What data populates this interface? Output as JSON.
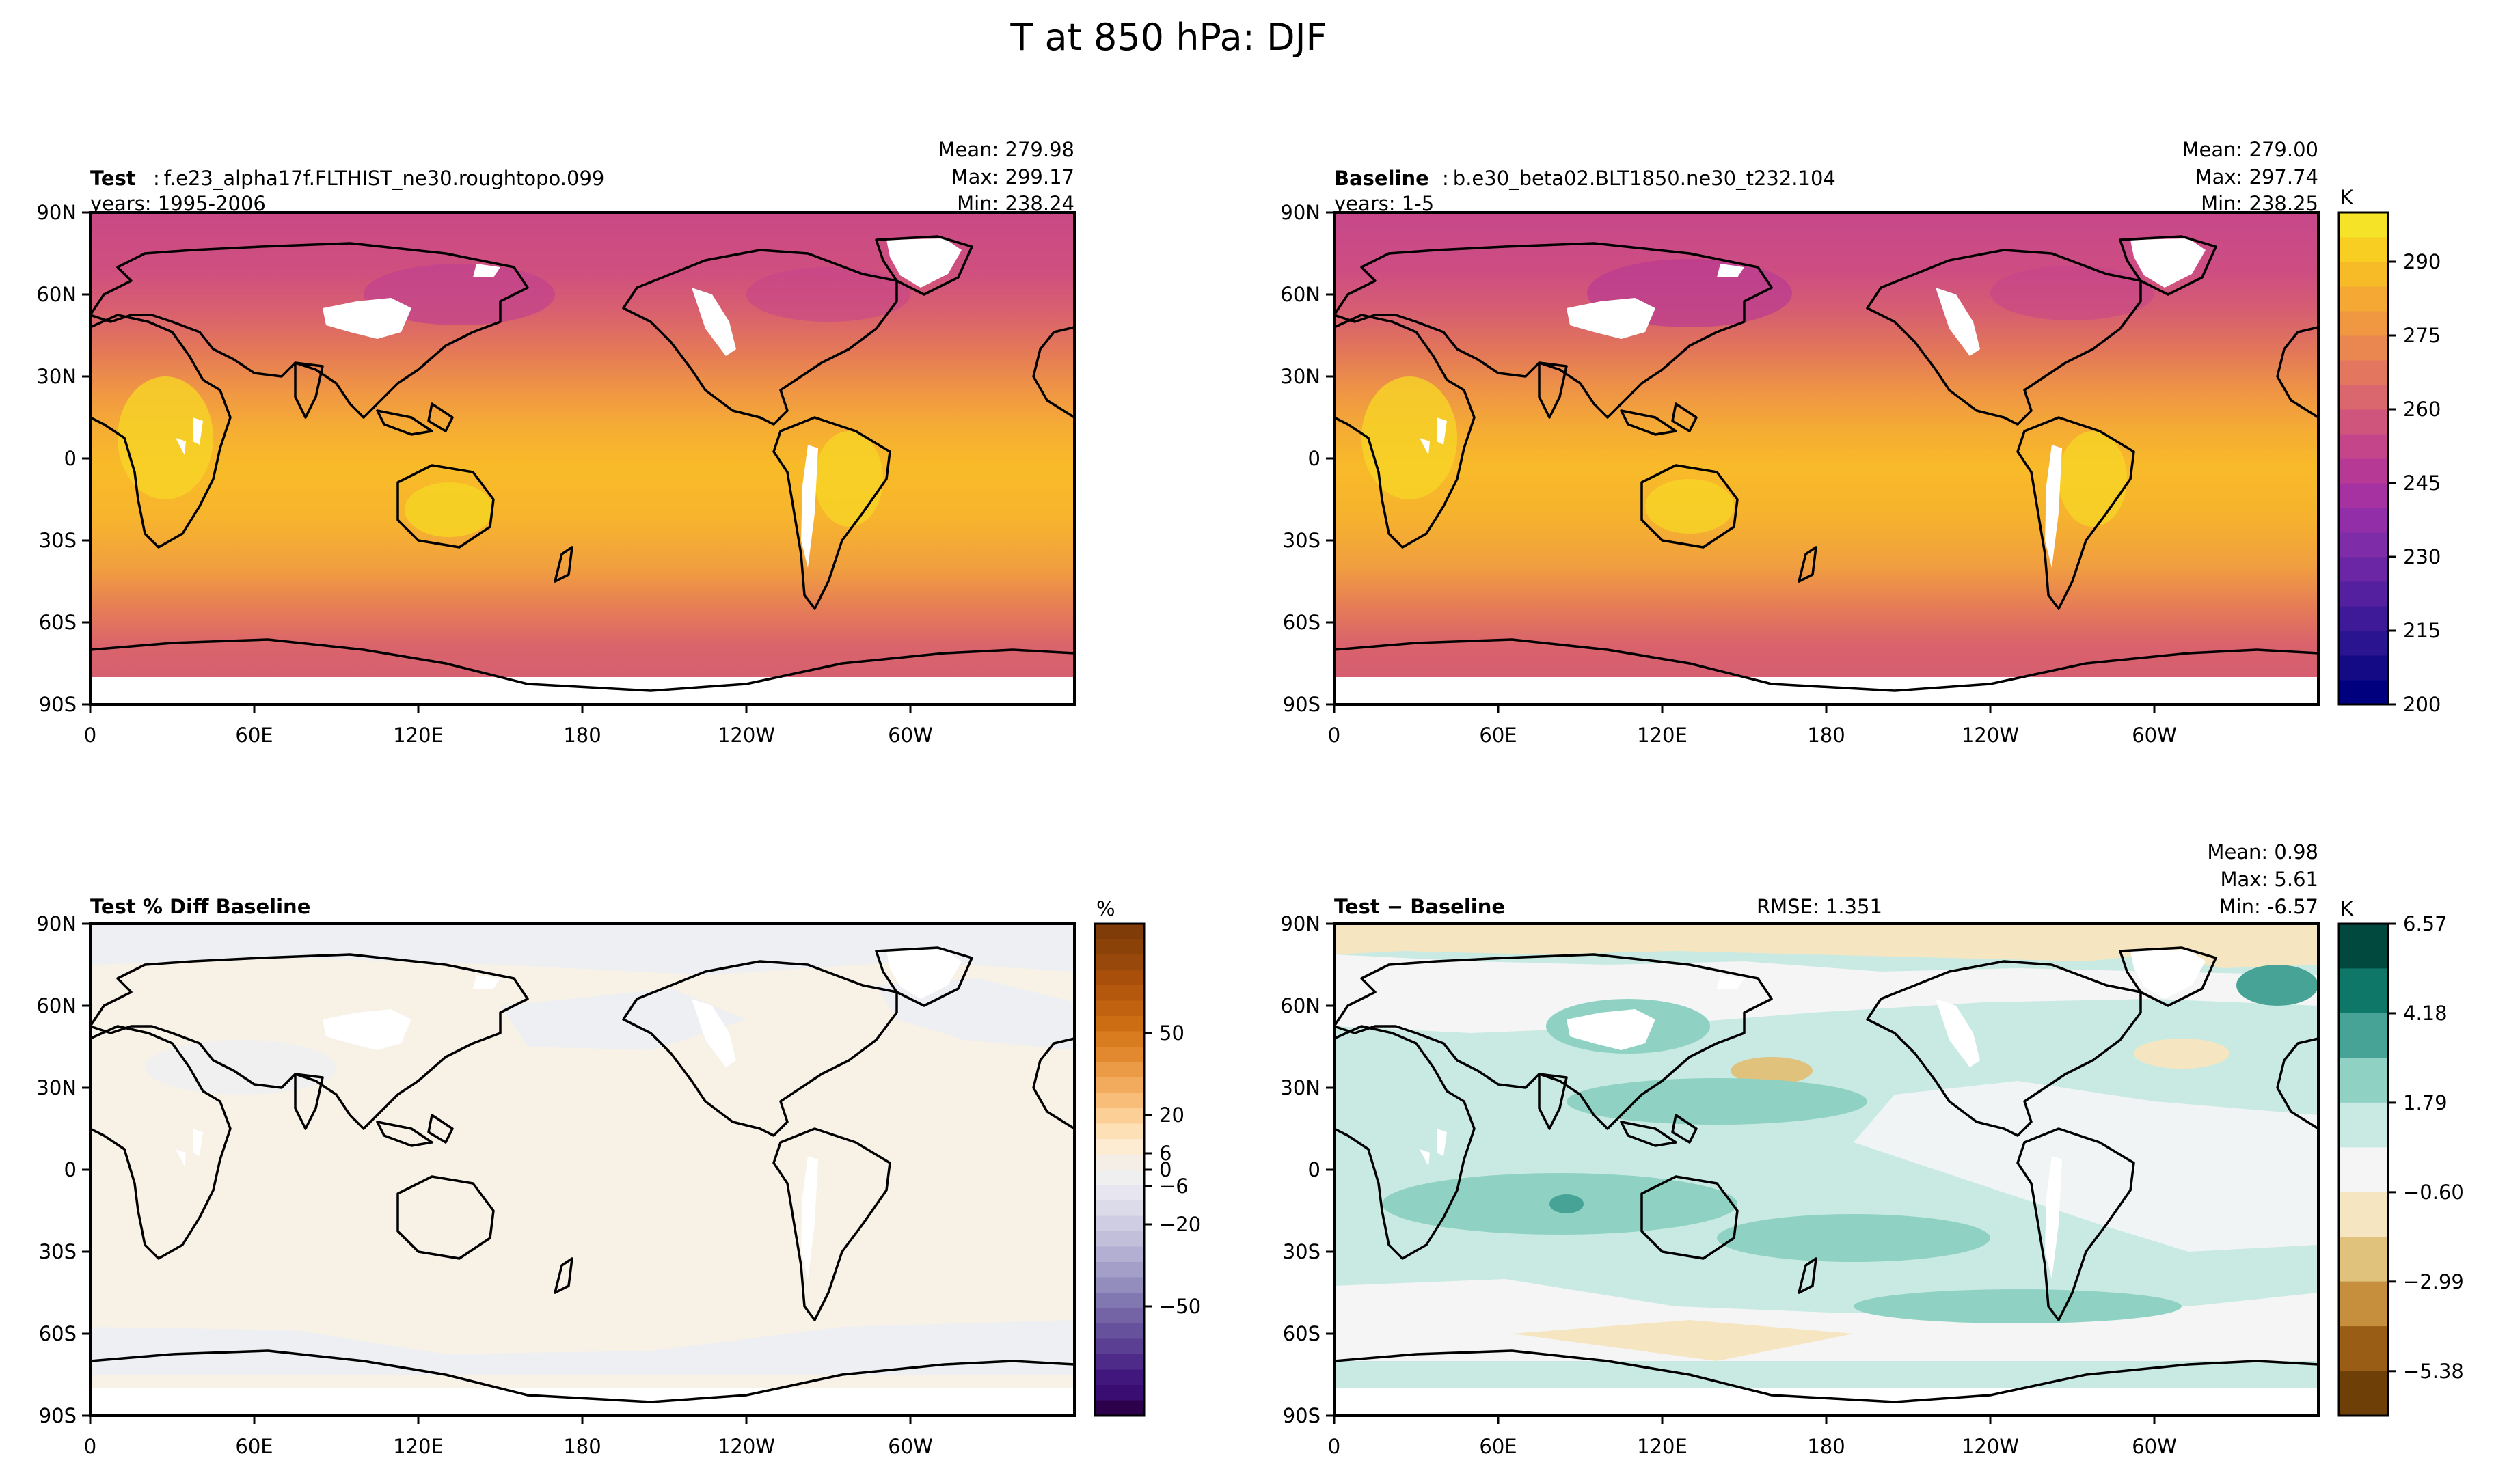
{
  "figure": {
    "title": "T at 850 hPa: DJF"
  },
  "chart_data": [
    {
      "type": "heatmap",
      "panel": "test",
      "label_bold": "Test",
      "label_sep": ":",
      "case": "f.e23_alpha17f.FLTHIST_ne30.roughtopo.099",
      "years": "years: 1995-2006",
      "stats": [
        "Mean: 279.98",
        "Max: 299.17",
        "Min: 238.24"
      ],
      "xticks": [
        "0",
        "60E",
        "120E",
        "180",
        "120W",
        "60W"
      ],
      "yticks": [
        "90N",
        "60N",
        "30N",
        "0",
        "30S",
        "60S",
        "90S"
      ],
      "units": "K",
      "value_range": [
        238.24,
        299.17
      ],
      "field": "temperature_850hPa"
    },
    {
      "type": "heatmap",
      "panel": "baseline",
      "label_bold": "Baseline",
      "label_sep": ":",
      "case": "b.e30_beta02.BLT1850.ne30_t232.104",
      "years": "years: 1-5",
      "stats": [
        "Mean: 279.00",
        "Max: 297.74",
        "Min: 238.25"
      ],
      "xticks": [
        "0",
        "60E",
        "120E",
        "180",
        "120W",
        "60W"
      ],
      "yticks": [
        "90N",
        "60N",
        "30N",
        "0",
        "30S",
        "60S",
        "90S"
      ],
      "units": "K",
      "value_range": [
        238.25,
        297.74
      ],
      "colorbar": {
        "units": "K",
        "vmin": 200,
        "vmax": 300,
        "levels": 20,
        "ticks": [
          "200",
          "215",
          "230",
          "245",
          "260",
          "275",
          "290"
        ],
        "tick_values": [
          200,
          215,
          230,
          245,
          260,
          275,
          290
        ],
        "colors": [
          "#00007f",
          "#150a86",
          "#2a1490",
          "#3f1a98",
          "#54209f",
          "#6a26a4",
          "#7f2ca8",
          "#932ea9",
          "#a532a0",
          "#b63a95",
          "#c4458a",
          "#cf557c",
          "#da666e",
          "#e2765f",
          "#ea8650",
          "#f09741",
          "#f5a833",
          "#f8bb28",
          "#f9ce22",
          "#f5e328"
        ]
      }
    },
    {
      "type": "heatmap",
      "panel": "pct_diff",
      "label_bold": "Test % Diff Baseline",
      "xticks": [
        "0",
        "60E",
        "120E",
        "180",
        "120W",
        "60W"
      ],
      "yticks": [
        "90N",
        "60N",
        "30N",
        "0",
        "30S",
        "60S",
        "90S"
      ],
      "units": "%",
      "colorbar": {
        "units": "%",
        "vmin": -90,
        "vmax": 90,
        "ticks": [
          "50",
          "20",
          "6",
          "0",
          "−6",
          "−20",
          "−50"
        ],
        "tick_values": [
          50,
          20,
          6,
          0,
          -6,
          -20,
          -50
        ],
        "colors_top_to_bottom": [
          "#7f3b08",
          "#8b4209",
          "#98480a",
          "#a74f0b",
          "#b3580d",
          "#c0620f",
          "#cc6d14",
          "#d97c1f",
          "#e2892f",
          "#eb9a46",
          "#f2ab5d",
          "#f7bd79",
          "#fbcf96",
          "#fde0b5",
          "#fdebd2",
          "#f5eee6",
          "#efefef",
          "#e7e6f0",
          "#dcdbe9",
          "#cfcde3",
          "#c2bfdb",
          "#b3afd2",
          "#a39fc8",
          "#928dbd",
          "#8278b1",
          "#7464a6",
          "#66529c",
          "#5a3f92",
          "#4e2b88",
          "#42177d",
          "#3a0d73",
          "#2d004b"
        ]
      }
    },
    {
      "type": "heatmap",
      "panel": "abs_diff",
      "label_bold": "Test − Baseline",
      "rmse": "RMSE: 1.351",
      "stats": [
        "Mean:  0.98",
        "Max:  5.61",
        "Min: -6.57"
      ],
      "xticks": [
        "0",
        "60E",
        "120E",
        "180",
        "120W",
        "60W"
      ],
      "yticks": [
        "90N",
        "60N",
        "30N",
        "0",
        "30S",
        "60S",
        "90S"
      ],
      "units": "K",
      "colorbar": {
        "units": "K",
        "vmin": -6.57,
        "vmax": 6.57,
        "ticks": [
          "6.57",
          "4.18",
          "1.79",
          "−0.60",
          "−2.99",
          "−5.38"
        ],
        "tick_values": [
          6.57,
          4.18,
          1.79,
          -0.6,
          -2.99,
          -5.38
        ],
        "colors_top_to_bottom": [
          "#01493f",
          "#0f7768",
          "#46a396",
          "#8fd2c3",
          "#c9eae3",
          "#f5f5f5",
          "#f5e6c1",
          "#e0c27c",
          "#c58f3e",
          "#9a5d16",
          "#6f3f08"
        ]
      }
    }
  ]
}
